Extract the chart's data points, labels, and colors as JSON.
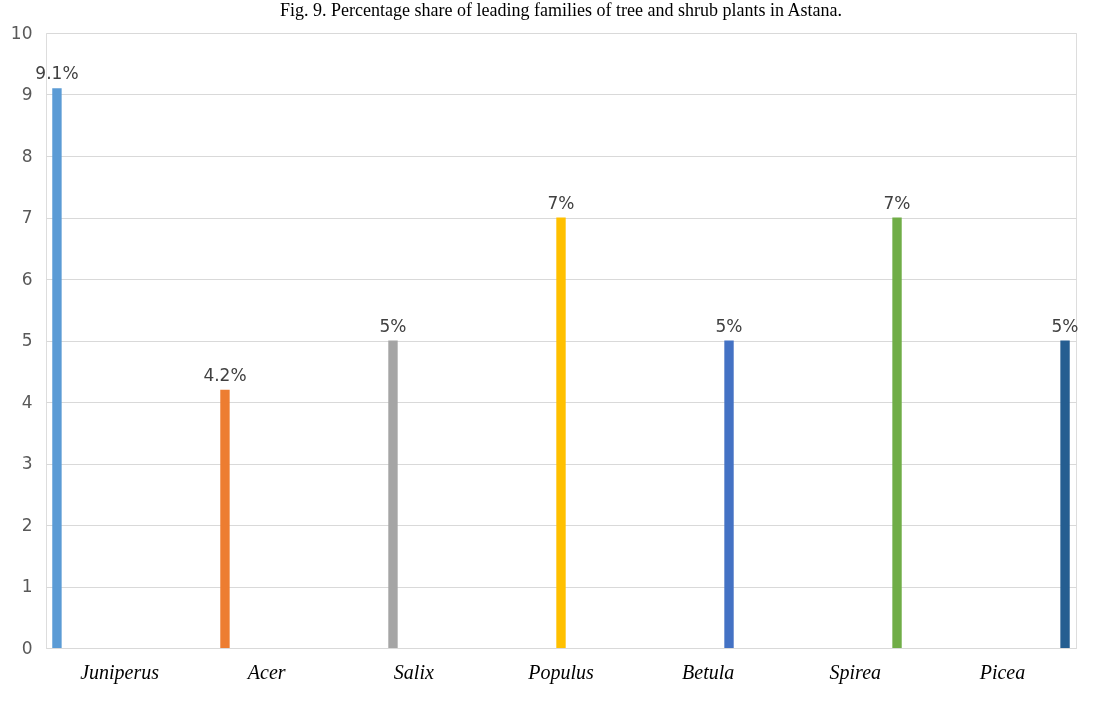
{
  "chart_data": {
    "type": "bar",
    "title": "Fig. 9. Percentage share of leading families of tree and shrub plants in Astana.",
    "categories": [
      "Juniperus",
      "Acer",
      "Salix",
      "Populus",
      "Betula",
      "Spirea",
      "Picea"
    ],
    "values": [
      9.1,
      4.2,
      5,
      7,
      5,
      7,
      5
    ],
    "colors": [
      "#5b9bd5",
      "#ed7d31",
      "#a5a5a5",
      "#ffc000",
      "#4472c4",
      "#70ad47",
      "#255e91"
    ],
    "value_labels": [
      "9.1%",
      "4.2%",
      "5%",
      "7%",
      "5%",
      "7%",
      "5%"
    ],
    "ylim": [
      0,
      10
    ],
    "yticks": [
      0,
      1,
      2,
      3,
      4,
      5,
      6,
      7,
      8,
      9,
      10
    ],
    "grid": "y"
  }
}
